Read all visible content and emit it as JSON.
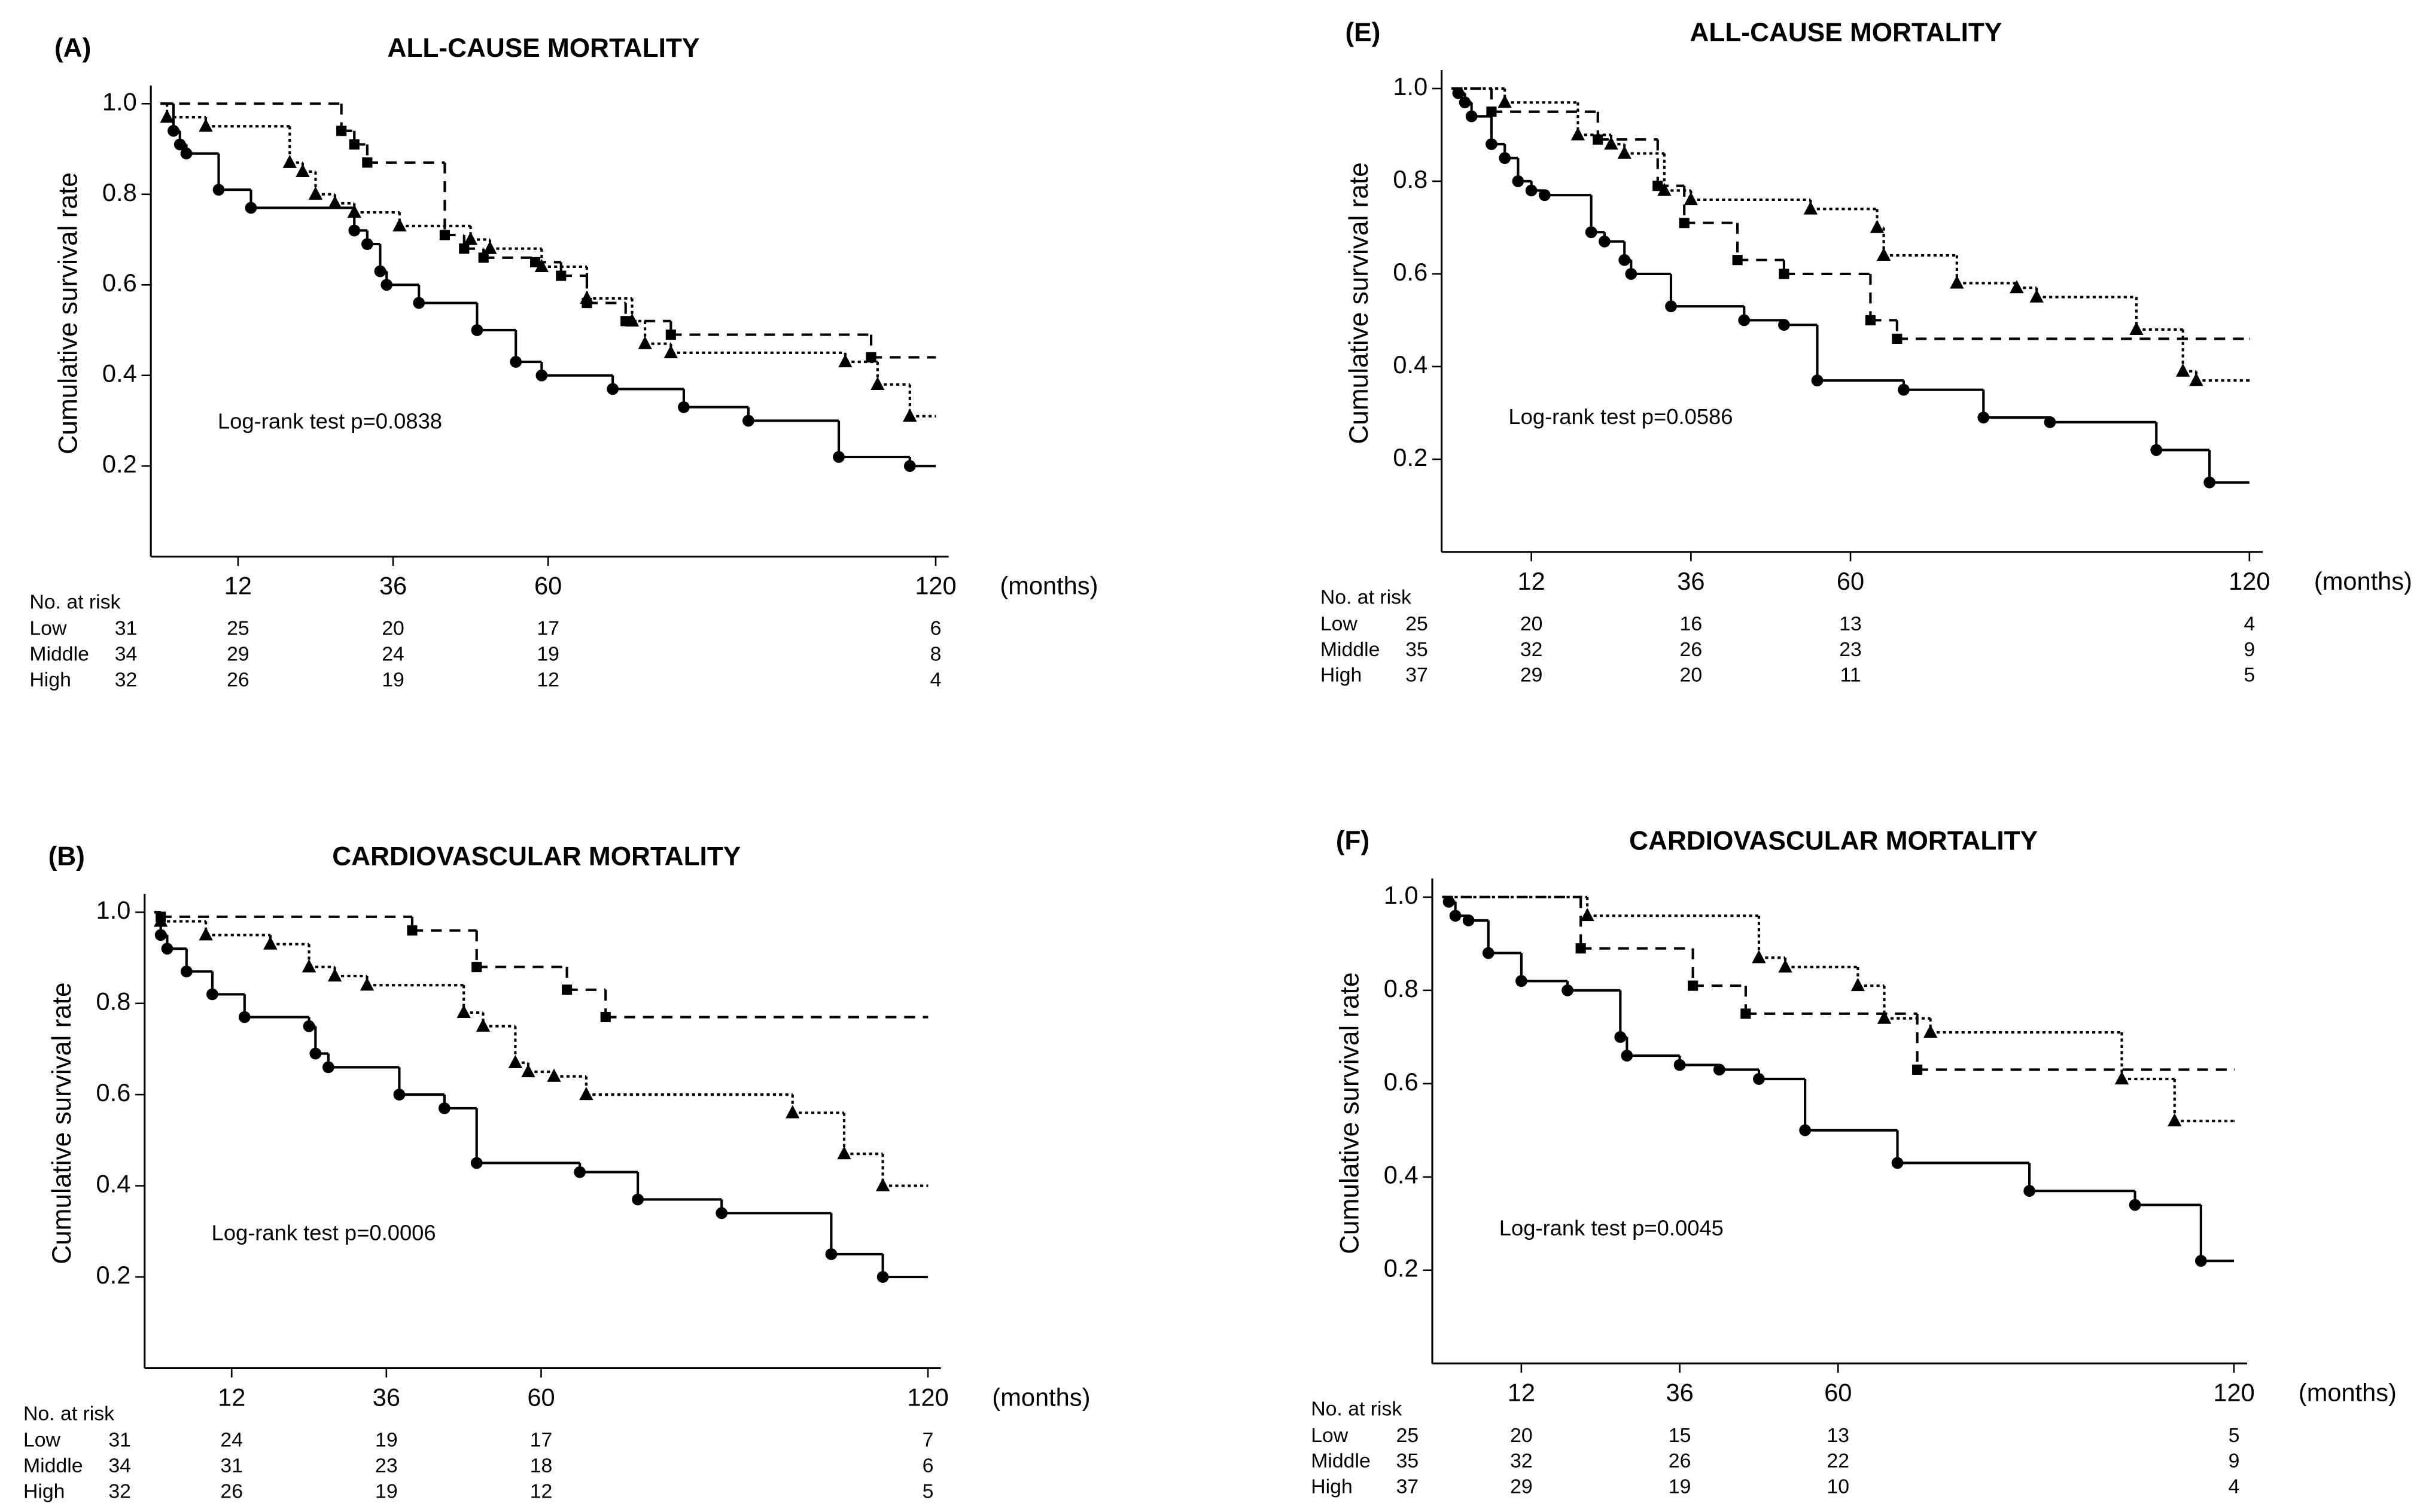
{
  "chart_data": [
    {
      "type": "step",
      "panel_label": "(A)",
      "title": "ALL-CAUSE MORTALITY",
      "y_label": "Cumulative survival rate",
      "x_unit": "(months)",
      "annotation": "Log-rank test p=0.0838",
      "risk_table_label": "No. at risk",
      "xlim": [
        -1.5,
        122
      ],
      "ylim": [
        0,
        1.04
      ],
      "xticks": [
        12,
        36,
        60,
        120
      ],
      "yticks": [
        0.2,
        0.4,
        0.6,
        0.8,
        {
          "value": 1,
          "label": "1.0"
        }
      ],
      "series": [
        {
          "name": "Low",
          "color": "#000000",
          "style": "dashed",
          "marker": "square",
          "x": [
            0,
            28,
            30,
            32,
            44,
            47,
            50,
            58,
            62,
            66,
            72,
            79,
            110,
            120
          ],
          "values": [
            1.0,
            0.94,
            0.91,
            0.87,
            0.71,
            0.68,
            0.66,
            0.65,
            0.62,
            0.56,
            0.52,
            0.49,
            0.44,
            0.44
          ],
          "at_risk": [
            31,
            25,
            20,
            17,
            6
          ]
        },
        {
          "name": "Middle",
          "color": "#000000",
          "style": "dotted",
          "marker": "triangle",
          "x": [
            0,
            1,
            7,
            20,
            22,
            24,
            27,
            30,
            37,
            48,
            51,
            59,
            66,
            73,
            75,
            79,
            106,
            111,
            116,
            120
          ],
          "values": [
            1.0,
            0.97,
            0.95,
            0.87,
            0.85,
            0.8,
            0.78,
            0.76,
            0.73,
            0.7,
            0.68,
            0.64,
            0.57,
            0.52,
            0.47,
            0.45,
            0.43,
            0.38,
            0.31,
            0.31
          ],
          "at_risk": [
            34,
            29,
            24,
            19,
            8
          ]
        },
        {
          "name": "High",
          "color": "#000000",
          "style": "solid",
          "marker": "circle",
          "x": [
            0,
            2,
            3,
            4,
            9,
            14,
            30,
            32,
            34,
            35,
            40,
            49,
            55,
            59,
            70,
            81,
            91,
            105,
            116,
            120
          ],
          "values": [
            1.0,
            0.94,
            0.91,
            0.89,
            0.81,
            0.77,
            0.72,
            0.69,
            0.63,
            0.6,
            0.56,
            0.5,
            0.43,
            0.4,
            0.37,
            0.33,
            0.3,
            0.22,
            0.2,
            0.2
          ],
          "at_risk": [
            32,
            26,
            19,
            12,
            4
          ]
        }
      ]
    },
    {
      "type": "step",
      "panel_label": "(B)",
      "title": "CARDIOVASCULAR MORTALITY",
      "y_label": "Cumulative survival rate",
      "x_unit": "(months)",
      "annotation": "Log-rank test p=0.0006",
      "risk_table_label": "No. at risk",
      "xlim": [
        -1.5,
        122
      ],
      "ylim": [
        0,
        1.04
      ],
      "xticks": [
        12,
        36,
        60,
        120
      ],
      "yticks": [
        0.2,
        0.4,
        0.6,
        0.8,
        {
          "value": 1,
          "label": "1.0"
        }
      ],
      "series": [
        {
          "name": "Low",
          "color": "#000000",
          "style": "dashed",
          "marker": "square",
          "x": [
            0,
            1,
            40,
            50,
            64,
            70,
            120
          ],
          "values": [
            1.0,
            0.99,
            0.96,
            0.88,
            0.83,
            0.77,
            0.77
          ],
          "at_risk": [
            31,
            24,
            19,
            17,
            7
          ]
        },
        {
          "name": "Middle",
          "color": "#000000",
          "style": "dotted",
          "marker": "triangle",
          "x": [
            0,
            1,
            8,
            18,
            24,
            28,
            33,
            48,
            51,
            56,
            58,
            62,
            67,
            99,
            107,
            113,
            120
          ],
          "values": [
            1.0,
            0.98,
            0.95,
            0.93,
            0.88,
            0.86,
            0.84,
            0.78,
            0.75,
            0.67,
            0.65,
            0.64,
            0.6,
            0.56,
            0.47,
            0.4,
            0.4
          ],
          "at_risk": [
            34,
            31,
            23,
            18,
            6
          ]
        },
        {
          "name": "High",
          "color": "#000000",
          "style": "solid",
          "marker": "circle",
          "x": [
            0,
            1,
            2,
            5,
            9,
            14,
            24,
            25,
            27,
            38,
            45,
            50,
            66,
            75,
            88,
            105,
            113,
            120
          ],
          "values": [
            1.0,
            0.95,
            0.92,
            0.87,
            0.82,
            0.77,
            0.75,
            0.69,
            0.66,
            0.6,
            0.57,
            0.45,
            0.43,
            0.37,
            0.34,
            0.25,
            0.2,
            0.2
          ],
          "at_risk": [
            32,
            26,
            19,
            12,
            5
          ]
        }
      ]
    },
    {
      "type": "step",
      "panel_label": "(E)",
      "title": "ALL-CAUSE MORTALITY",
      "y_label": "Cumulative survival rate",
      "x_unit": "(months)",
      "annotation": "Log-rank test p=0.0586",
      "risk_table_label": "No. at risk",
      "xlim": [
        -1.5,
        122
      ],
      "ylim": [
        0,
        1.04
      ],
      "xticks": [
        12,
        36,
        60,
        120
      ],
      "yticks": [
        0.2,
        0.4,
        0.6,
        0.8,
        {
          "value": 1,
          "label": "1.0"
        }
      ],
      "series": [
        {
          "name": "Low",
          "color": "#000000",
          "style": "dashed",
          "marker": "square",
          "x": [
            0,
            6,
            22,
            31,
            35,
            43,
            50,
            63,
            67,
            120
          ],
          "values": [
            1.0,
            0.95,
            0.89,
            0.79,
            0.71,
            0.63,
            0.6,
            0.5,
            0.46,
            0.46
          ],
          "at_risk": [
            25,
            20,
            16,
            13,
            4
          ]
        },
        {
          "name": "Middle",
          "color": "#000000",
          "style": "dotted",
          "marker": "triangle",
          "x": [
            0,
            8,
            19,
            24,
            26,
            32,
            36,
            54,
            64,
            65,
            76,
            85,
            88,
            103,
            110,
            112,
            120
          ],
          "values": [
            1.0,
            0.97,
            0.9,
            0.88,
            0.86,
            0.78,
            0.76,
            0.74,
            0.7,
            0.64,
            0.58,
            0.57,
            0.55,
            0.48,
            0.39,
            0.37,
            0.37
          ],
          "at_risk": [
            35,
            32,
            26,
            23,
            9
          ]
        },
        {
          "name": "High",
          "color": "#000000",
          "style": "solid",
          "marker": "circle",
          "x": [
            0,
            1,
            2,
            3,
            6,
            8,
            10,
            12,
            14,
            21,
            23,
            26,
            27,
            33,
            44,
            50,
            55,
            68,
            80,
            90,
            106,
            114,
            120
          ],
          "values": [
            1.0,
            0.99,
            0.97,
            0.94,
            0.88,
            0.85,
            0.8,
            0.78,
            0.77,
            0.69,
            0.67,
            0.63,
            0.6,
            0.53,
            0.5,
            0.49,
            0.37,
            0.35,
            0.29,
            0.28,
            0.22,
            0.15,
            0.15
          ],
          "at_risk": [
            37,
            29,
            20,
            11,
            5
          ]
        }
      ]
    },
    {
      "type": "step",
      "panel_label": "(F)",
      "title": "CARDIOVASCULAR MORTALITY",
      "y_label": "Cumulative survival rate",
      "x_unit": "(months)",
      "annotation": "Log-rank test p=0.0045",
      "risk_table_label": "No. at risk",
      "xlim": [
        -1.5,
        122
      ],
      "ylim": [
        0,
        1.04
      ],
      "xticks": [
        12,
        36,
        60,
        120
      ],
      "yticks": [
        0.2,
        0.4,
        0.6,
        0.8,
        {
          "value": 1,
          "label": "1.0"
        }
      ],
      "series": [
        {
          "name": "Low",
          "color": "#000000",
          "style": "dashed",
          "marker": "square",
          "x": [
            0,
            21,
            38,
            46,
            72,
            120
          ],
          "values": [
            1.0,
            0.89,
            0.81,
            0.75,
            0.63,
            0.63
          ],
          "at_risk": [
            25,
            20,
            15,
            13,
            5
          ]
        },
        {
          "name": "Middle",
          "color": "#000000",
          "style": "dotted",
          "marker": "triangle",
          "x": [
            0,
            22,
            48,
            52,
            63,
            67,
            74,
            103,
            111,
            120
          ],
          "values": [
            1.0,
            0.96,
            0.87,
            0.85,
            0.81,
            0.74,
            0.71,
            0.61,
            0.52,
            0.52
          ],
          "at_risk": [
            35,
            32,
            26,
            22,
            9
          ]
        },
        {
          "name": "High",
          "color": "#000000",
          "style": "solid",
          "marker": "circle",
          "x": [
            0,
            1,
            2,
            4,
            7,
            12,
            19,
            27,
            28,
            36,
            42,
            48,
            55,
            69,
            89,
            105,
            115,
            120
          ],
          "values": [
            1.0,
            0.99,
            0.96,
            0.95,
            0.88,
            0.82,
            0.8,
            0.7,
            0.66,
            0.64,
            0.63,
            0.61,
            0.5,
            0.43,
            0.37,
            0.34,
            0.22,
            0.22
          ],
          "at_risk": [
            37,
            29,
            19,
            10,
            4
          ]
        }
      ]
    }
  ]
}
